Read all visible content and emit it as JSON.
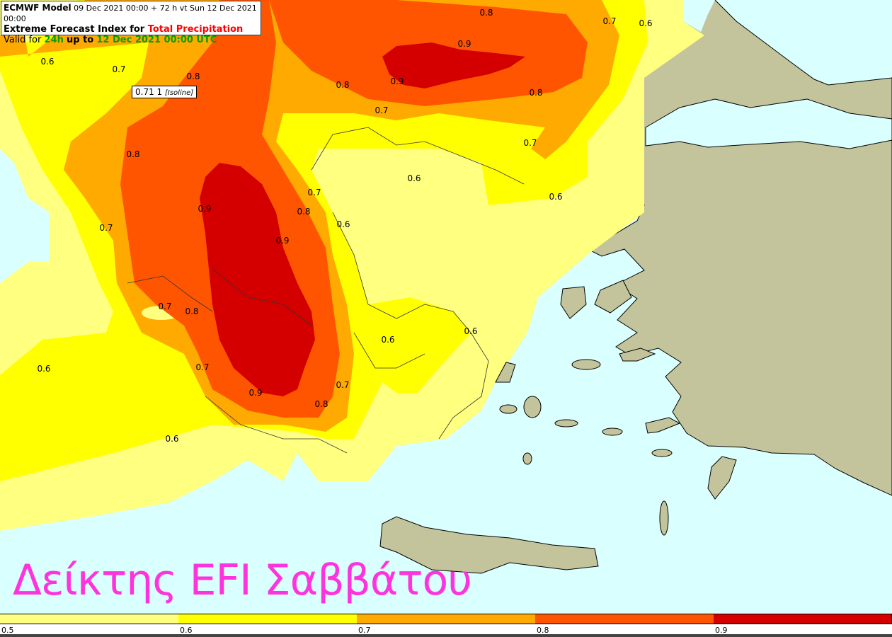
{
  "header": {
    "model": "ECMWF Model",
    "run_info": "09 Dec 2021 00:00 + 72 h vt Sun 12 Dec 2021 00:00",
    "title_prefix": "Extreme Forecast Index for",
    "title_param": "Total Precipitation",
    "valid_prefix": "Valid for",
    "valid_period": "24h",
    "valid_mid": "up to",
    "valid_time": "12 Dec 2021 00:00 UTC"
  },
  "isoline_tooltip": {
    "value": "0.71 1",
    "label": "[Isoline]"
  },
  "overlay_text": "Δείκτης EFI Σαββάτου",
  "colors": {
    "sea": "#d9ffff",
    "land": "#c4c49c",
    "band_0_5": "#ffff80",
    "band_0_6": "#ffff00",
    "band_0_7": "#ffaa00",
    "band_0_8": "#ff5500",
    "band_0_9": "#d40000",
    "overlay_text": "#ff33dd"
  },
  "legend": {
    "bands": [
      {
        "from": "0.5",
        "color": "#ffff80"
      },
      {
        "from": "0.6",
        "color": "#ffff00"
      },
      {
        "from": "0.7",
        "color": "#ffaa00"
      },
      {
        "from": "0.8",
        "color": "#ff5500"
      },
      {
        "from": "0.9",
        "color": "#d40000"
      }
    ]
  },
  "contour_labels": [
    "0.8",
    "0.7",
    "0.6",
    "0.9",
    "0.6",
    "0.7",
    "0.8",
    "0.8",
    "0.9",
    "0.8",
    "0.7",
    "0.7",
    "0.8",
    "0.6",
    "0.7",
    "0.6",
    "0.9",
    "0.8",
    "0.6",
    "0.7",
    "0.9",
    "0.7",
    "0.8",
    "0.6",
    "0.6",
    "0.6",
    "0.7",
    "0.7",
    "0.9",
    "0.8",
    "0.6"
  ]
}
